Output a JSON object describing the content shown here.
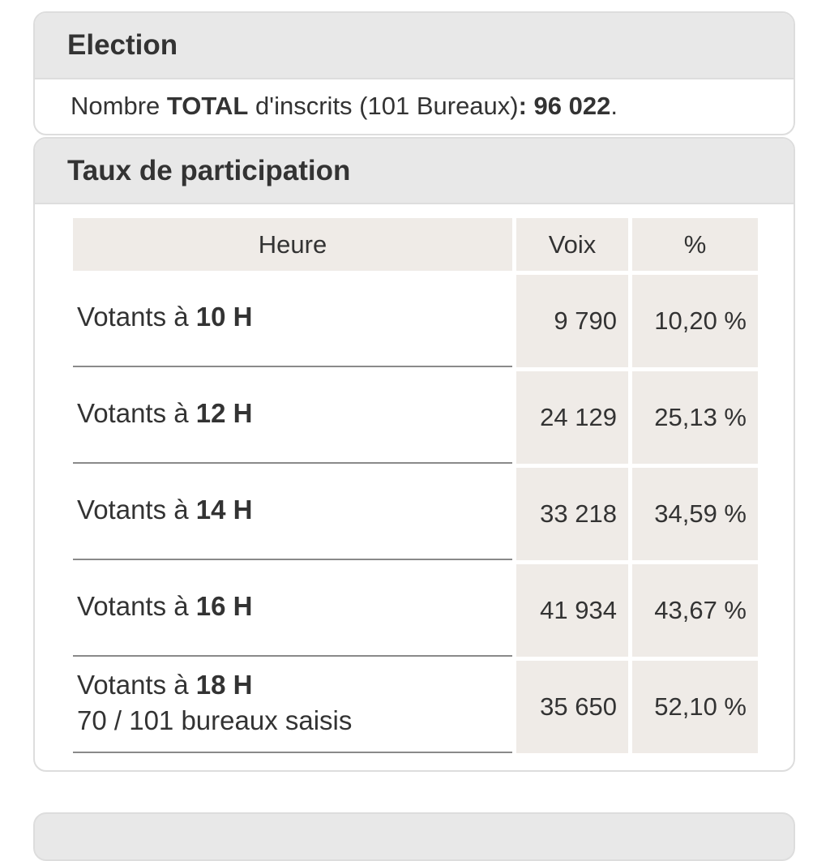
{
  "election": {
    "heading": "Election",
    "registered_prefix": "Nombre ",
    "registered_bold": "TOTAL",
    "registered_middle": " d'inscrits (101 Bureaux)",
    "registered_colon": ": ",
    "registered_value": "96 022",
    "registered_period": "."
  },
  "participation": {
    "heading": "Taux de participation",
    "columns": [
      "Heure",
      "Voix",
      "%"
    ],
    "rows": [
      {
        "label_prefix": "Votants à ",
        "label_hour": "10 H",
        "note": "",
        "voix": "9 790",
        "pct": "10,20 %"
      },
      {
        "label_prefix": "Votants à ",
        "label_hour": "12 H",
        "note": "",
        "voix": "24 129",
        "pct": "25,13 %"
      },
      {
        "label_prefix": "Votants à ",
        "label_hour": "14 H",
        "note": "",
        "voix": "33 218",
        "pct": "34,59 %"
      },
      {
        "label_prefix": "Votants à ",
        "label_hour": "16 H",
        "note": "",
        "voix": "41 934",
        "pct": "43,67 %"
      },
      {
        "label_prefix": "Votants à ",
        "label_hour": "18 H",
        "note": "70 / 101 bureaux saisis",
        "voix": "35 650",
        "pct": "52,10 %"
      }
    ]
  }
}
